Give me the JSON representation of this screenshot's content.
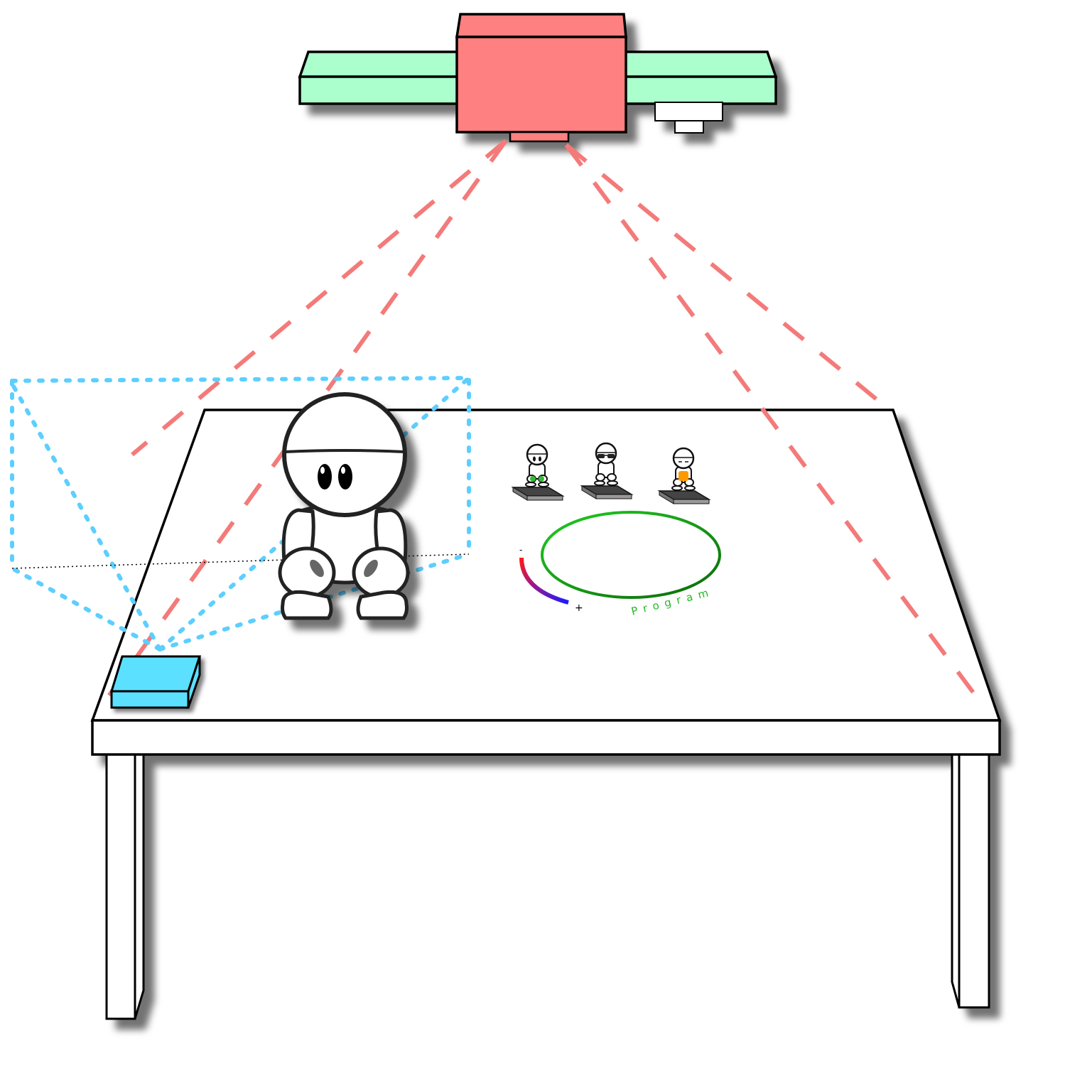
{
  "diagram": {
    "labels": {
      "minus_sign": "-",
      "plus_sign": "+",
      "program_word": "Program"
    },
    "colors": {
      "projector_body": "#ff8080",
      "rail": "#aaffcc",
      "projection_rays": "#f47a7a",
      "kinect_box": "#5ce0ff",
      "kinect_fov": "#5ccfff",
      "program_ring": "#0a9a0a",
      "program_text": "#22bb22",
      "gauge_start": "#ff1a1a",
      "gauge_end": "#1a1aff"
    },
    "figurines": [
      {
        "name": "green-figurine",
        "accent": "#33bb33"
      },
      {
        "name": "sunglasses-figurine",
        "accent": "#222222"
      },
      {
        "name": "orange-figurine",
        "accent": "#ff9900"
      }
    ]
  }
}
